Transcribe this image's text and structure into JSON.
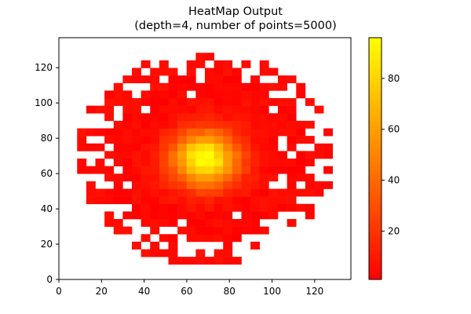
{
  "chart_data": {
    "type": "heatmap",
    "title_lines": [
      "HeatMap Output",
      "(depth=4, number of points=5000)"
    ],
    "xlabel": "",
    "ylabel": "",
    "xlim": [
      0,
      137
    ],
    "ylim": [
      0,
      137
    ],
    "grid": false,
    "x_ticks": [
      0,
      20,
      40,
      60,
      80,
      100,
      120
    ],
    "y_ticks": [
      0,
      20,
      40,
      60,
      80,
      100,
      120
    ],
    "colorbar": {
      "range": [
        1,
        96
      ],
      "ticks": [
        20,
        40,
        60,
        80
      ],
      "colors": [
        "#ff0000",
        "#ff8000",
        "#ffff00"
      ]
    },
    "cells": {
      "rows": 32,
      "cols": 32,
      "center_x": 68.5,
      "center_y": 68.5,
      "peak_value": 96,
      "radius": 58
    }
  }
}
